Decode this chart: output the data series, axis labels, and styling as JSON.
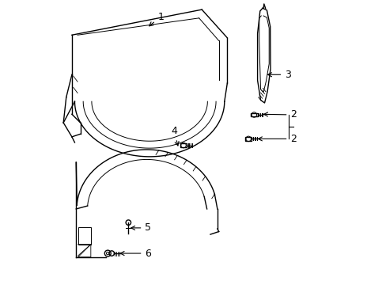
{
  "background_color": "#ffffff",
  "line_color": "#000000",
  "lw": 1.0
}
